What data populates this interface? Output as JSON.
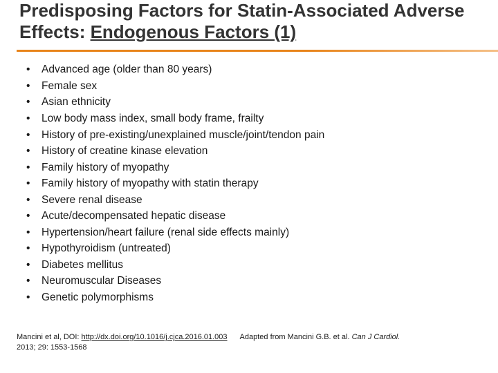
{
  "title": {
    "part1": "Predisposing Factors for Statin-Associated Adverse Effects: ",
    "part2_underlined": "Endogenous Factors (1)",
    "color": "#333333",
    "fontsize": 26,
    "fontweight": "bold"
  },
  "divider": {
    "color_start": "#e8841a",
    "color_end": "#f5c088",
    "height": 3
  },
  "bullets": [
    "Advanced age (older than 80 years)",
    "Female sex",
    "Asian ethnicity",
    "Low body mass index, small body frame, frailty",
    "History of pre-existing/unexplained muscle/joint/tendon pain",
    "History of creatine kinase elevation",
    "Family history of myopathy",
    "Family history of myopathy with statin therapy",
    "Severe renal disease",
    "Acute/decompensated hepatic disease",
    "Hypertension/heart failure (renal side effects mainly)",
    "Hypothyroidism (untreated)",
    "Diabetes mellitus",
    "Neuromuscular Diseases",
    "Genetic polymorphisms"
  ],
  "bullet_style": {
    "fontsize": 15.5,
    "color": "#1a1a1a",
    "lineheight": 1.52
  },
  "citation": {
    "prefix": "Mancini et al, DOI: ",
    "doi_link": "http://dx.doi.org/10.1016/j.cjca.2016.01.003",
    "adapted_prefix": "Adapted from Mancini G.B. et al. ",
    "journal_italic": "Can J Cardiol.",
    "line2": "2013; 29: 1553-1568",
    "fontsize": 11
  },
  "background_color": "#ffffff"
}
